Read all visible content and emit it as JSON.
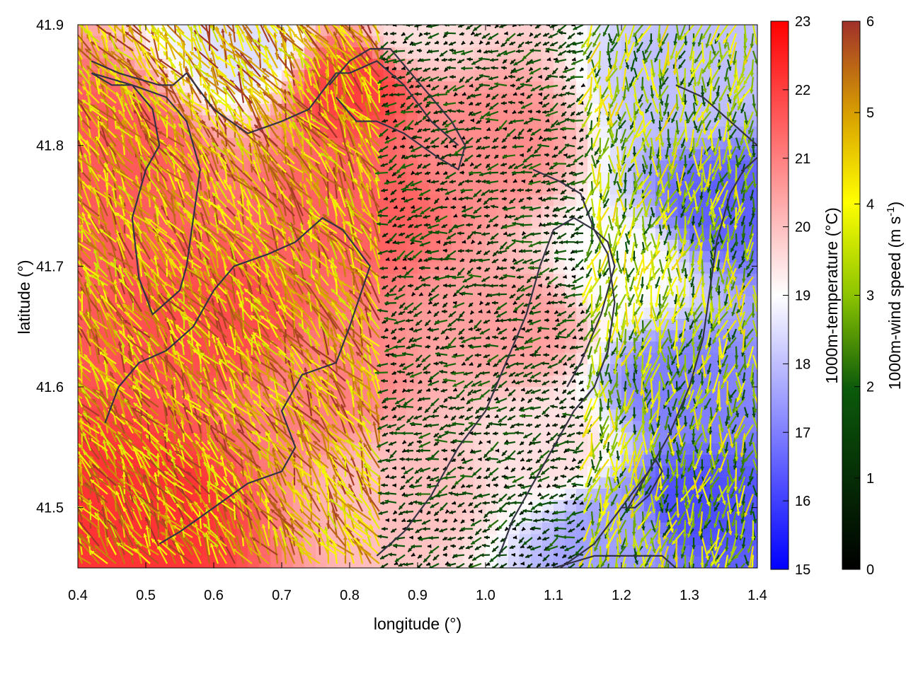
{
  "chart_data": {
    "type": "heatmap",
    "title": "",
    "xlabel": "longitude (°)",
    "ylabel": "latitude (°)",
    "xlim": [
      0.4,
      1.4
    ],
    "ylim": [
      41.45,
      41.9
    ],
    "xticks": [
      "0.4",
      "0.5",
      "0.6",
      "0.7",
      "0.8",
      "0.9",
      "1.0",
      "1.1",
      "1.2",
      "1.3",
      "1.4"
    ],
    "yticks": [
      "41.5",
      "41.6",
      "41.7",
      "41.8",
      "41.9"
    ],
    "grid": false,
    "temperature_colorbar": {
      "label": "1000m-temperature (°C)",
      "range": [
        15,
        23
      ],
      "ticks": [
        "15",
        "16",
        "17",
        "18",
        "19",
        "20",
        "21",
        "22",
        "23"
      ],
      "colors": [
        "#0000ff",
        "#ffffff",
        "#ff0000"
      ]
    },
    "wind_colorbar": {
      "label_main": "1000m-wind speed (m s",
      "label_sup": "-1",
      "label_end": ")",
      "range": [
        0,
        6
      ],
      "ticks": [
        "0",
        "1",
        "2",
        "3",
        "4",
        "5",
        "6"
      ],
      "colors": [
        "#000000",
        "#0b5a0b",
        "#8cc400",
        "#ffff00",
        "#d8a000",
        "#a0302a"
      ]
    },
    "temperature_field": {
      "description_points": [
        {
          "lon": 0.45,
          "lat": 41.8,
          "t": 21.6
        },
        {
          "lon": 0.5,
          "lat": 41.5,
          "t": 22.2
        },
        {
          "lon": 0.62,
          "lat": 41.65,
          "t": 21.8
        },
        {
          "lon": 0.8,
          "lat": 41.85,
          "t": 22.0
        },
        {
          "lon": 0.82,
          "lat": 41.75,
          "t": 21.5
        },
        {
          "lon": 0.75,
          "lat": 41.6,
          "t": 21.0
        },
        {
          "lon": 0.88,
          "lat": 41.52,
          "t": 20.0
        },
        {
          "lon": 1.0,
          "lat": 41.8,
          "t": 20.8
        },
        {
          "lon": 1.05,
          "lat": 41.65,
          "t": 20.5
        },
        {
          "lon": 1.1,
          "lat": 41.55,
          "t": 19.5
        },
        {
          "lon": 1.2,
          "lat": 41.7,
          "t": 19.0
        },
        {
          "lon": 1.28,
          "lat": 41.6,
          "t": 17.0
        },
        {
          "lon": 1.35,
          "lat": 41.75,
          "t": 16.5
        },
        {
          "lon": 1.3,
          "lat": 41.5,
          "t": 16.2
        },
        {
          "lon": 1.2,
          "lat": 41.48,
          "t": 17.5
        },
        {
          "lon": 0.9,
          "lat": 41.9,
          "t": 19.5
        },
        {
          "lon": 0.65,
          "lat": 41.88,
          "t": 18.5
        },
        {
          "lon": 1.3,
          "lat": 41.85,
          "t": 18.0
        }
      ]
    },
    "contours": [
      {
        "name": "contour-west-closed",
        "lon": [
          0.42,
          0.48,
          0.53,
          0.56,
          0.58,
          0.57,
          0.56,
          0.55,
          0.53,
          0.51,
          0.49,
          0.48,
          0.5,
          0.52,
          0.51,
          0.48,
          0.45,
          0.42
        ],
        "lat": [
          41.86,
          41.85,
          41.84,
          41.82,
          41.78,
          41.74,
          41.7,
          41.68,
          41.67,
          41.66,
          41.69,
          41.74,
          41.78,
          41.8,
          41.83,
          41.85,
          41.85,
          41.86
        ]
      },
      {
        "name": "contour-northwest",
        "lon": [
          0.42,
          0.46,
          0.52,
          0.54,
          0.56,
          0.6,
          0.65,
          0.7,
          0.74,
          0.78,
          0.8,
          0.84,
          0.88,
          0.92,
          0.96
        ],
        "lat": [
          41.87,
          41.86,
          41.85,
          41.85,
          41.86,
          41.83,
          41.81,
          41.82,
          41.83,
          41.86,
          41.86,
          41.87,
          41.85,
          41.82,
          41.8
        ]
      },
      {
        "name": "contour-central-ridge",
        "lon": [
          0.44,
          0.46,
          0.49,
          0.53,
          0.57,
          0.6,
          0.63,
          0.68,
          0.72,
          0.76,
          0.79,
          0.83,
          0.8,
          0.78,
          0.73,
          0.7,
          0.72,
          0.7,
          0.65,
          0.6,
          0.55,
          0.52
        ],
        "lat": [
          41.57,
          41.6,
          41.62,
          41.63,
          41.65,
          41.68,
          41.7,
          41.71,
          41.72,
          41.74,
          41.73,
          41.7,
          41.65,
          41.62,
          41.61,
          41.58,
          41.55,
          41.53,
          41.52,
          41.5,
          41.48,
          41.47
        ]
      },
      {
        "name": "contour-middle-north",
        "lon": [
          0.77,
          0.8,
          0.83,
          0.86,
          0.89,
          0.92,
          0.95,
          0.97,
          0.96,
          0.93,
          0.88,
          0.84,
          0.81,
          0.78
        ],
        "lat": [
          41.85,
          41.87,
          41.88,
          41.88,
          41.86,
          41.84,
          41.82,
          41.8,
          41.78,
          41.79,
          41.81,
          41.82,
          41.82,
          41.84
        ]
      },
      {
        "name": "contour-east-diagonal",
        "lon": [
          0.84,
          0.88,
          0.92,
          0.96,
          1.0,
          1.03,
          1.06,
          1.08,
          1.1,
          1.13,
          1.16,
          1.18,
          1.19,
          1.17,
          1.14,
          1.12
        ],
        "lat": [
          41.46,
          41.48,
          41.51,
          41.55,
          41.58,
          41.62,
          41.66,
          41.7,
          41.73,
          41.74,
          41.73,
          41.72,
          41.7,
          41.66,
          41.62,
          41.6
        ]
      },
      {
        "name": "contour-east-long",
        "lon": [
          1.02,
          1.04,
          1.07,
          1.1,
          1.13,
          1.16,
          1.18,
          1.19,
          1.18,
          1.16,
          1.14,
          1.11,
          1.07
        ],
        "lat": [
          41.46,
          41.49,
          41.52,
          41.55,
          41.58,
          41.6,
          41.63,
          41.67,
          41.71,
          41.73,
          41.76,
          41.77,
          41.78
        ]
      },
      {
        "name": "contour-far-east",
        "lon": [
          1.11,
          1.16,
          1.2,
          1.24,
          1.27,
          1.3,
          1.32,
          1.33,
          1.34,
          1.36,
          1.38,
          1.4
        ],
        "lat": [
          41.45,
          41.47,
          41.5,
          41.53,
          41.56,
          41.6,
          41.64,
          41.68,
          41.72,
          41.76,
          41.78,
          41.79
        ]
      },
      {
        "name": "contour-small-closed",
        "lon": [
          1.2,
          1.22,
          1.24,
          1.26,
          1.25,
          1.23,
          1.21,
          1.2
        ],
        "lat": [
          41.5,
          41.5,
          41.51,
          41.53,
          41.54,
          41.52,
          41.5,
          41.5
        ]
      },
      {
        "name": "contour-southeast",
        "lon": [
          1.1,
          1.16,
          1.22,
          1.26,
          1.28
        ],
        "lat": [
          41.45,
          41.46,
          41.46,
          41.46,
          41.45
        ]
      },
      {
        "name": "contour-northeast",
        "lon": [
          1.28,
          1.32,
          1.36,
          1.4
        ],
        "lat": [
          41.85,
          41.84,
          41.82,
          41.8
        ]
      }
    ],
    "wind_vectors": {
      "grid_spacing_lon": 0.0125,
      "grid_spacing_lat": 0.0072,
      "sample_regions": [
        {
          "region": "west",
          "lon_range": [
            0.4,
            0.85
          ],
          "speed_range": [
            3.5,
            6.0
          ],
          "direction_deg": 120
        },
        {
          "region": "central-calm",
          "lon_range": [
            0.85,
            1.15
          ],
          "speed_range": [
            0.0,
            2.2
          ],
          "direction_deg": 200
        },
        {
          "region": "east",
          "lon_range": [
            1.15,
            1.4
          ],
          "speed_range": [
            1.5,
            4.5
          ],
          "direction_deg": 260
        }
      ]
    }
  }
}
